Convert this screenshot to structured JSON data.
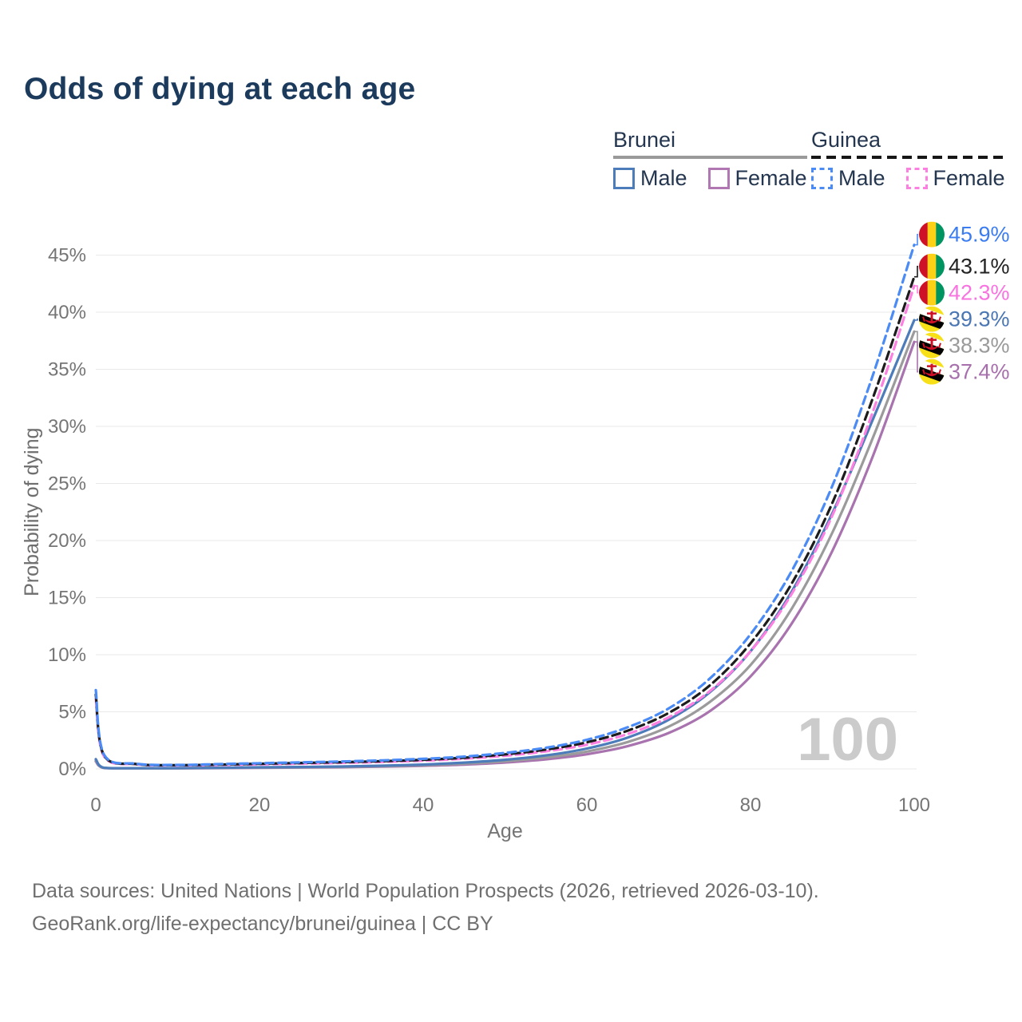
{
  "title": "Odds of dying at each age",
  "watermark": "100",
  "footer": {
    "line1": "Data sources: United Nations | World Population Prospects (2026, retrieved 2026-03-10).",
    "line2": "GeoRank.org/life-expectancy/brunei/guinea | CC BY"
  },
  "legend": {
    "groups": [
      {
        "country": "Brunei",
        "line_style": "solid",
        "line_color": "#9a9a9a",
        "items": [
          {
            "label": "Male",
            "color": "#4d7cba",
            "dashed": false
          },
          {
            "label": "Female",
            "color": "#b077b2",
            "dashed": false
          }
        ]
      },
      {
        "country": "Guinea",
        "line_style": "dashed",
        "line_color": "#161616",
        "items": [
          {
            "label": "Male",
            "color": "#4b8bf5",
            "dashed": true
          },
          {
            "label": "Female",
            "color": "#fb80e0",
            "dashed": true
          }
        ]
      }
    ]
  },
  "flag_colors": {
    "guinea": [
      "#ce1126",
      "#fcd116",
      "#009460"
    ],
    "brunei": {
      "field": "#f7e017",
      "stripe_white": "#ffffff",
      "stripe_black": "#000000",
      "crest": "#cf1126"
    }
  },
  "chart_data": {
    "type": "line",
    "title": "Odds of dying at each age",
    "xlabel": "Age",
    "ylabel": "Probability of dying",
    "xlim": [
      0,
      100
    ],
    "ylim_pct": [
      0,
      47
    ],
    "grid": "horizontal",
    "legend_position": "top-right",
    "xticks": [
      "0",
      "20",
      "40",
      "60",
      "80",
      "100"
    ],
    "xtick_values": [
      0,
      20,
      40,
      60,
      80,
      100
    ],
    "ytick_labels": [
      "0%",
      "5%",
      "10%",
      "15%",
      "20%",
      "25%",
      "30%",
      "35%",
      "40%",
      "45%"
    ],
    "ytick_values_pct": [
      0,
      5,
      10,
      15,
      20,
      25,
      30,
      35,
      40,
      45
    ],
    "x_ages": [
      0,
      1,
      5,
      10,
      15,
      20,
      25,
      30,
      35,
      40,
      45,
      50,
      55,
      60,
      65,
      70,
      75,
      80,
      85,
      90,
      95,
      100
    ],
    "series": [
      {
        "name": "Brunei Female",
        "country": "Brunei",
        "sex": "Female",
        "flag": "brunei",
        "color": "#a873ae",
        "label_color": "#a770ad",
        "dashed": false,
        "end_label": "37.4%",
        "values_pct": [
          0.65,
          0.08,
          0.05,
          0.05,
          0.07,
          0.1,
          0.12,
          0.15,
          0.2,
          0.27,
          0.38,
          0.56,
          0.84,
          1.28,
          2.0,
          3.15,
          5.05,
          8.1,
          12.7,
          19.1,
          27.5,
          37.4
        ]
      },
      {
        "name": "Brunei Total",
        "country": "Brunei",
        "sex": "Both",
        "flag": "brunei",
        "color": "#9b9b9b",
        "label_color": "#9a9a9a",
        "dashed": false,
        "end_label": "38.3%",
        "values_pct": [
          0.75,
          0.09,
          0.05,
          0.06,
          0.09,
          0.12,
          0.14,
          0.18,
          0.24,
          0.32,
          0.46,
          0.67,
          1.0,
          1.52,
          2.36,
          3.7,
          5.85,
          9.1,
          14.0,
          20.7,
          29.1,
          38.3
        ]
      },
      {
        "name": "Brunei Male",
        "country": "Brunei",
        "sex": "Male",
        "flag": "brunei",
        "color": "#4d7cba",
        "label_color": "#4a77b4",
        "dashed": false,
        "end_label": "39.3%",
        "values_pct": [
          0.85,
          0.1,
          0.06,
          0.07,
          0.1,
          0.14,
          0.17,
          0.21,
          0.28,
          0.38,
          0.55,
          0.8,
          1.18,
          1.78,
          2.75,
          4.3,
          6.7,
          10.3,
          15.5,
          22.4,
          30.7,
          39.3
        ]
      },
      {
        "name": "Guinea Female",
        "country": "Guinea",
        "sex": "Female",
        "flag": "guinea",
        "color": "#fb80e0",
        "label_color": "#f973e0",
        "dashed": true,
        "end_label": "42.3%",
        "values_pct": [
          6.1,
          1.1,
          0.4,
          0.31,
          0.34,
          0.4,
          0.46,
          0.53,
          0.61,
          0.72,
          0.89,
          1.15,
          1.54,
          2.12,
          3.06,
          4.52,
          6.8,
          10.3,
          15.3,
          22.2,
          31.4,
          42.3
        ]
      },
      {
        "name": "Guinea Total",
        "country": "Guinea",
        "sex": "Both",
        "flag": "guinea",
        "color": "#1c1c1c",
        "label_color": "#222222",
        "dashed": true,
        "end_label": "43.1%",
        "values_pct": [
          6.5,
          1.18,
          0.42,
          0.33,
          0.38,
          0.45,
          0.52,
          0.59,
          0.68,
          0.8,
          0.98,
          1.27,
          1.69,
          2.33,
          3.35,
          4.9,
          7.3,
          11.0,
          16.2,
          23.3,
          32.6,
          43.1
        ]
      },
      {
        "name": "Guinea Male",
        "country": "Guinea",
        "sex": "Male",
        "flag": "guinea",
        "color": "#4b8bf5",
        "label_color": "#3b7df0",
        "dashed": true,
        "end_label": "45.9%",
        "values_pct": [
          6.9,
          1.25,
          0.45,
          0.35,
          0.42,
          0.5,
          0.57,
          0.65,
          0.75,
          0.88,
          1.08,
          1.4,
          1.85,
          2.55,
          3.65,
          5.3,
          7.9,
          11.8,
          17.3,
          24.8,
          34.6,
          45.9
        ]
      }
    ]
  }
}
